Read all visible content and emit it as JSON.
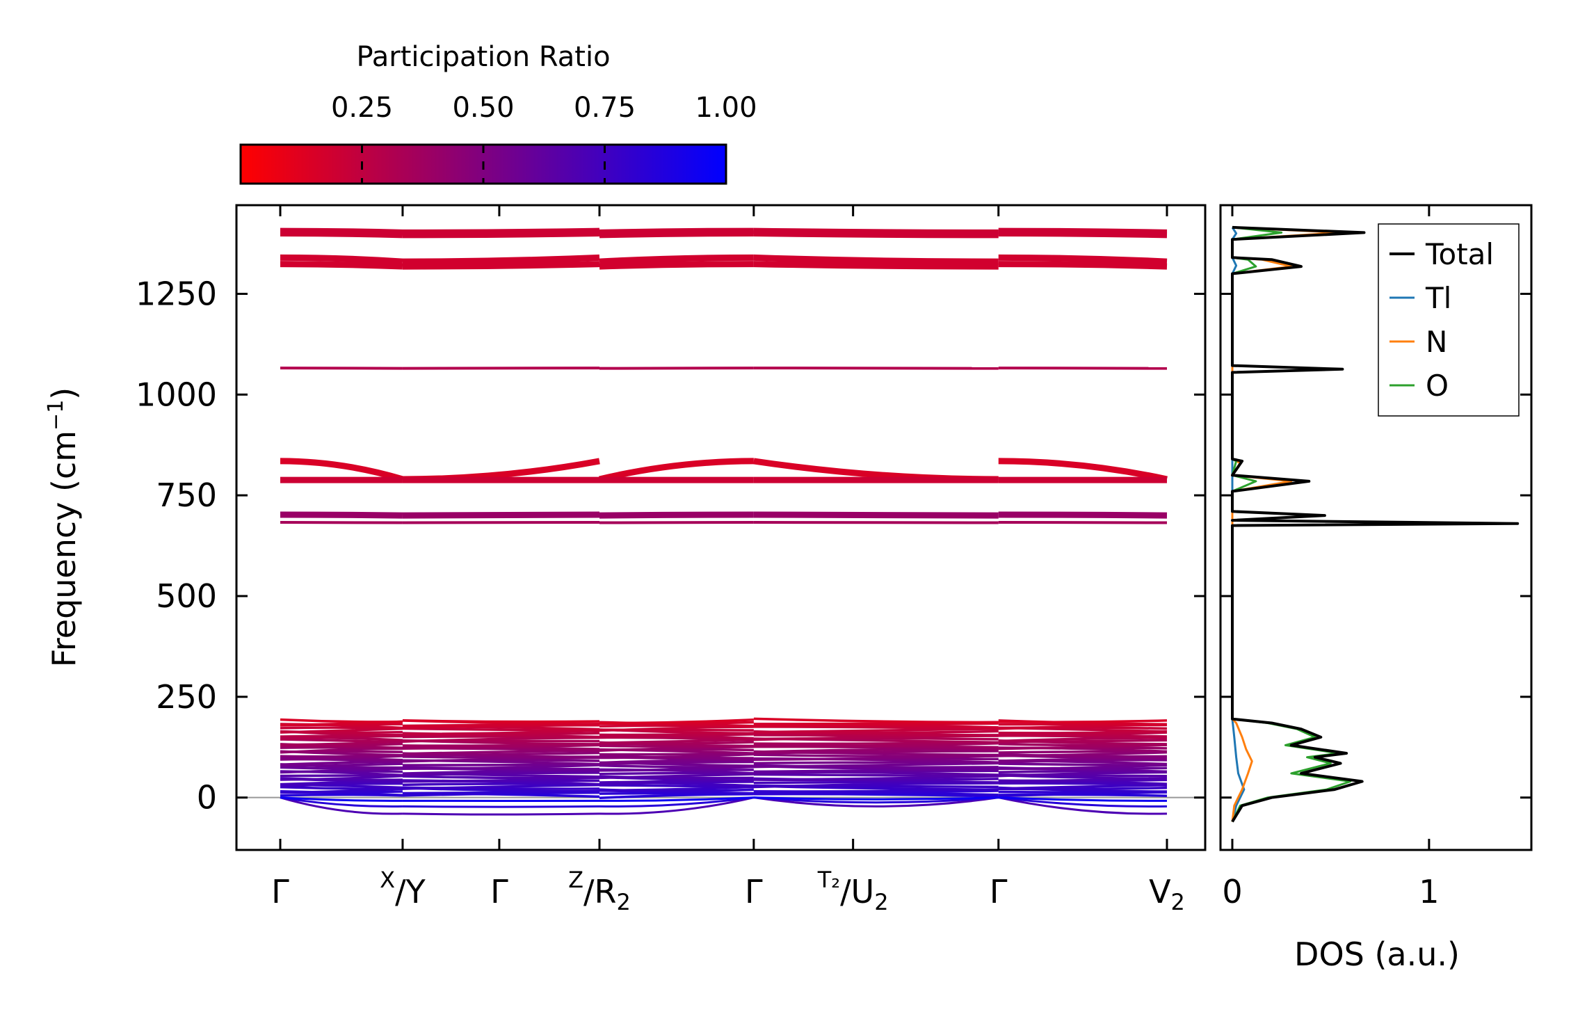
{
  "colors": {
    "low_pr": "#ff0000",
    "high_pr": "#0000ff",
    "total": "#000000",
    "Tl": "#1f77b4",
    "N": "#ff7f0e",
    "O": "#2ca02c",
    "zero_line": "#999999"
  },
  "colorbar": {
    "title": "Participation Ratio",
    "ticks": [
      "0.25",
      "0.50",
      "0.75",
      "1.00"
    ],
    "tick_values": [
      0.25,
      0.5,
      0.75,
      1.0
    ],
    "range": [
      0.0,
      1.0
    ]
  },
  "chart_data": [
    {
      "type": "line",
      "name": "phonon-band-structure",
      "ylabel": "Frequency (cm⁻¹)",
      "ylabel_base": "Frequency (cm",
      "ylabel_sup": "−1",
      "ylabel_close": ")",
      "ylim": [
        -130,
        1470
      ],
      "yticks": [
        0,
        250,
        500,
        750,
        1000,
        1250
      ],
      "ytick_labels": [
        "0",
        "250",
        "500",
        "750",
        "1000",
        "1250"
      ],
      "x_segments": [
        [
          0.0,
          0.138
        ],
        [
          0.138,
          0.36
        ],
        [
          0.36,
          0.534
        ],
        [
          0.534,
          0.81
        ],
        [
          0.81,
          1.0
        ]
      ],
      "high_symmetry_points": [
        {
          "pos": 0.0,
          "label": "Γ",
          "sup": "",
          "sub": ""
        },
        {
          "pos": 0.138,
          "label": "/Y",
          "sup": "X",
          "sub": ""
        },
        {
          "pos": 0.247,
          "label": "Γ",
          "sup": "",
          "sub": ""
        },
        {
          "pos": 0.36,
          "label": "/R",
          "sup": "Z",
          "sub": "2"
        },
        {
          "pos": 0.534,
          "label": "Γ",
          "sup": "",
          "sub": ""
        },
        {
          "pos": 0.646,
          "label": "/U",
          "sup": "T₂",
          "sub": "2"
        },
        {
          "pos": 0.81,
          "label": "Γ",
          "sup": "",
          "sub": ""
        },
        {
          "pos": 1.0,
          "label": "V",
          "sup": "",
          "sub": "2"
        }
      ],
      "high_freq_bands": [
        {
          "base": 1402,
          "amp": 4,
          "pr": 0.2
        },
        {
          "base": 1396,
          "amp": 4,
          "pr": 0.2
        },
        {
          "base": 1330,
          "amp": 10,
          "pr": 0.18
        },
        {
          "base": 1318,
          "amp": 6,
          "pr": 0.18
        },
        {
          "base": 1065,
          "amp": 1,
          "pr": 0.3
        },
        {
          "base": 790,
          "amp": 45,
          "pr": 0.15
        },
        {
          "base": 788,
          "amp": 0,
          "pr": 0.2
        },
        {
          "base": 700,
          "amp": 2,
          "pr": 0.4
        },
        {
          "base": 682,
          "amp": 1,
          "pr": 0.35
        }
      ],
      "low_freq_range": [
        5,
        190
      ],
      "imaginary_modes_min": -40
    },
    {
      "type": "line",
      "name": "density-of-states",
      "xlabel": "DOS (a.u.)",
      "xlim": [
        -0.06,
        1.52
      ],
      "xticks": [
        0,
        1
      ],
      "xtick_labels": [
        "0",
        "1"
      ],
      "ylim": [
        -130,
        1470
      ],
      "legend_position": "top-right",
      "series": [
        {
          "name": "Total",
          "points": [
            [
              0.0,
              -60
            ],
            [
              0.05,
              -20
            ],
            [
              0.2,
              0
            ],
            [
              0.52,
              20
            ],
            [
              0.66,
              40
            ],
            [
              0.35,
              60
            ],
            [
              0.55,
              85
            ],
            [
              0.42,
              100
            ],
            [
              0.58,
              110
            ],
            [
              0.3,
              130
            ],
            [
              0.45,
              150
            ],
            [
              0.35,
              170
            ],
            [
              0.2,
              185
            ],
            [
              0.0,
              195
            ],
            [
              0.0,
              675
            ],
            [
              1.45,
              680
            ],
            [
              0.0,
              688
            ],
            [
              0.47,
              700
            ],
            [
              0.0,
              710
            ],
            [
              0.0,
              760
            ],
            [
              0.39,
              785
            ],
            [
              0.0,
              800
            ],
            [
              0.05,
              835
            ],
            [
              0.0,
              840
            ],
            [
              0.0,
              1055
            ],
            [
              0.56,
              1063
            ],
            [
              0.0,
              1072
            ],
            [
              0.0,
              1300
            ],
            [
              0.35,
              1318
            ],
            [
              0.2,
              1335
            ],
            [
              0.0,
              1340
            ],
            [
              0.0,
              1385
            ],
            [
              0.67,
              1402
            ],
            [
              0.0,
              1415
            ]
          ]
        },
        {
          "name": "Tl",
          "points": [
            [
              0.0,
              -60
            ],
            [
              0.02,
              -20
            ],
            [
              0.06,
              20
            ],
            [
              0.03,
              60
            ],
            [
              0.02,
              100
            ],
            [
              0.01,
              150
            ],
            [
              0.0,
              195
            ],
            [
              0.0,
              1300
            ],
            [
              0.02,
              1320
            ],
            [
              0.0,
              1340
            ],
            [
              0.0,
              1385
            ],
            [
              0.02,
              1400
            ],
            [
              0.0,
              1415
            ]
          ]
        },
        {
          "name": "N",
          "points": [
            [
              0.0,
              -60
            ],
            [
              0.01,
              -20
            ],
            [
              0.05,
              20
            ],
            [
              0.08,
              60
            ],
            [
              0.1,
              90
            ],
            [
              0.07,
              120
            ],
            [
              0.05,
              150
            ],
            [
              0.02,
              185
            ],
            [
              0.0,
              195
            ],
            [
              0.0,
              760
            ],
            [
              0.3,
              785
            ],
            [
              0.0,
              800
            ],
            [
              0.04,
              830
            ],
            [
              0.0,
              840
            ],
            [
              0.0,
              1300
            ],
            [
              0.3,
              1318
            ],
            [
              0.15,
              1335
            ],
            [
              0.0,
              1340
            ],
            [
              0.0,
              1385
            ],
            [
              0.55,
              1402
            ],
            [
              0.0,
              1415
            ]
          ]
        },
        {
          "name": "O",
          "points": [
            [
              0.0,
              -60
            ],
            [
              0.04,
              -20
            ],
            [
              0.18,
              0
            ],
            [
              0.48,
              20
            ],
            [
              0.6,
              40
            ],
            [
              0.3,
              60
            ],
            [
              0.5,
              85
            ],
            [
              0.38,
              100
            ],
            [
              0.54,
              110
            ],
            [
              0.27,
              130
            ],
            [
              0.42,
              150
            ],
            [
              0.33,
              170
            ],
            [
              0.18,
              185
            ],
            [
              0.0,
              195
            ],
            [
              0.0,
              675
            ],
            [
              1.38,
              680
            ],
            [
              0.0,
              688
            ],
            [
              0.45,
              700
            ],
            [
              0.0,
              710
            ],
            [
              0.0,
              760
            ],
            [
              0.12,
              785
            ],
            [
              0.0,
              800
            ],
            [
              0.02,
              835
            ],
            [
              0.0,
              840
            ],
            [
              0.0,
              1055
            ],
            [
              0.55,
              1063
            ],
            [
              0.0,
              1072
            ],
            [
              0.0,
              1300
            ],
            [
              0.12,
              1318
            ],
            [
              0.08,
              1335
            ],
            [
              0.0,
              1340
            ],
            [
              0.0,
              1385
            ],
            [
              0.25,
              1402
            ],
            [
              0.0,
              1415
            ]
          ]
        }
      ]
    }
  ]
}
